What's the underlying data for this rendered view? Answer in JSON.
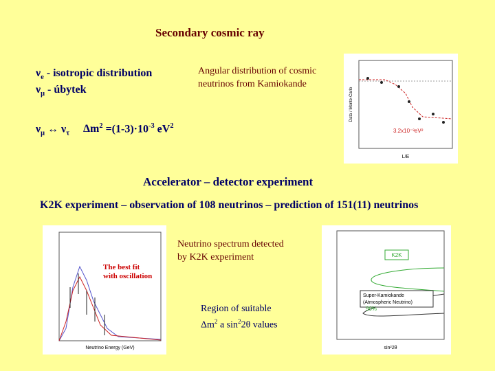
{
  "title": "Secondary cosmic ray",
  "nu_e_line": {
    "symbol": "ν",
    "subscript": "e",
    "text": " - isotropic distribution"
  },
  "nu_mu_line": {
    "symbol": "ν",
    "subscript": "μ",
    "text": " - úbytek"
  },
  "oscillation": {
    "left_symbol": "ν",
    "left_subscript": "μ",
    "arrow": " ↔ ",
    "right_symbol": "ν",
    "right_subscript": "τ",
    "delta": "Δm",
    "power": "2",
    "middle": " =(1-3)·10",
    "exponent": "-3",
    "unit": " eV",
    "unit_power": "2"
  },
  "kamiokande_caption": [
    "Angular distribution of cosmic",
    "neutrinos from Kamiokande"
  ],
  "kamiokande_plot": {
    "y_label": "Data / Monte-Carlo",
    "x_label": "L/E",
    "note": "3.2x10⁻³eV²"
  },
  "accelerator_heading": "Accelerator – detector experiment",
  "k2k_line": "K2K experiment – observation of 108 neutrinos – prediction of 151(11) neutrinos",
  "spectrum_caption": [
    "Neutrino spectrum detected",
    "by K2K experiment"
  ],
  "spectrum_plot": {
    "x_label": "Neutrino Energy (GeV)",
    "fit_label": [
      "The best fit",
      "with oscillation"
    ]
  },
  "region_caption": {
    "line1": "Region of suitable",
    "delta": "Δm",
    "power": "2",
    "middle": " a sin",
    "power2": "2",
    "rest": "2θ values"
  },
  "region_plot": {
    "box_label": "K2K",
    "legend": [
      "Super-Kamiokande",
      "(Atmospheric Neutrino)"
    ],
    "cl": "90%",
    "x_label": "sin²2θ"
  }
}
